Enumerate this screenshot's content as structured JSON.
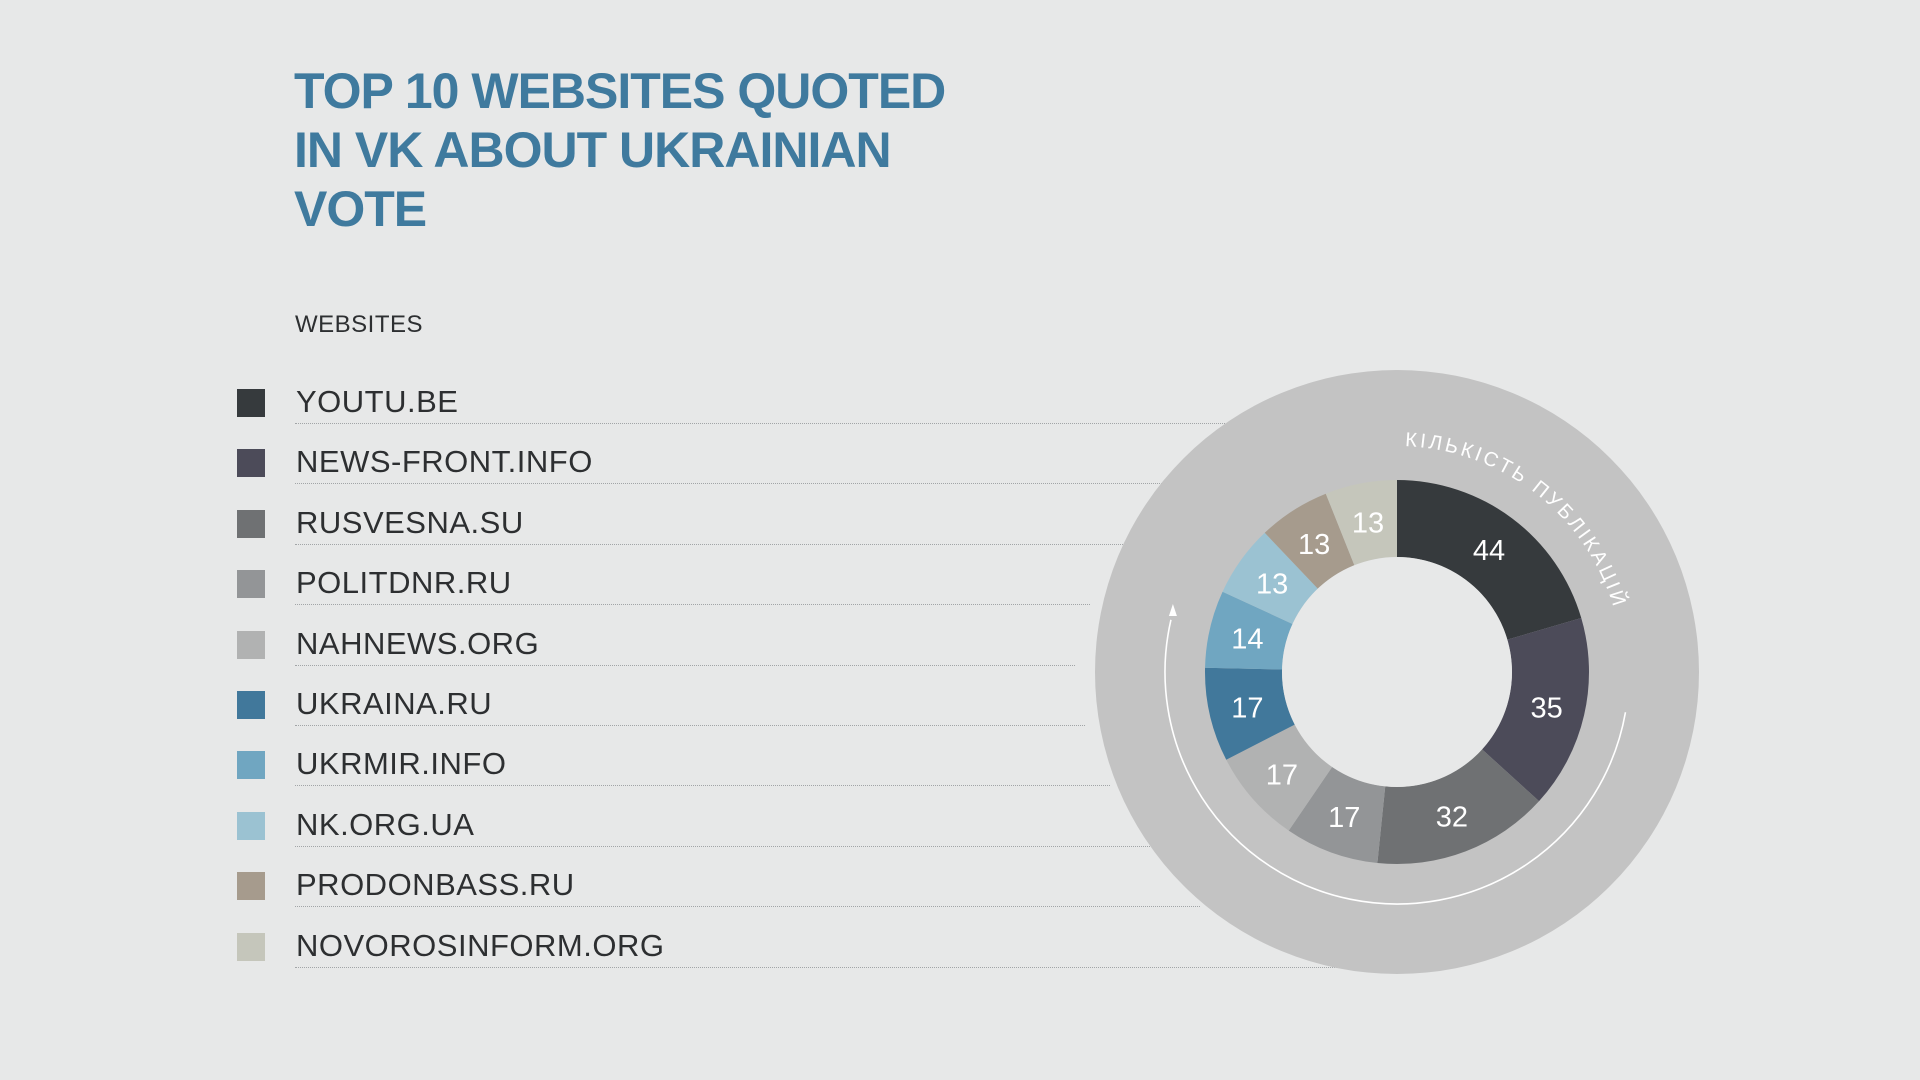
{
  "title_lines": [
    "TOP 10 WEBSITES QUOTED",
    "IN VK ABOUT UKRAINIAN",
    "VOTE"
  ],
  "legend_header": "WEBSITES",
  "ring_label": "КІЛЬКІСТЬ ПУБЛІКАЦІЙ",
  "colors": {
    "background": "#e7e8e8",
    "title": "#3f7a9e",
    "outer_ring": "#c3c3c3",
    "inner_hole": "#e7e8e8"
  },
  "chart_data": {
    "type": "pie",
    "title": "TOP 10 WEBSITES QUOTED IN VK ABOUT UKRAINIAN VOTE",
    "categories": [
      "YOUTU.BE",
      "NEWS-FRONT.INFO",
      "RUSVESNA.SU",
      "POLITDNR.RU",
      "NAHNEWS.ORG",
      "UKRAINA.RU",
      "UKRMIR.INFO",
      "NK.ORG.UA",
      "PRODONBASS.RU",
      "NOVOROSINFORM.ORG"
    ],
    "values": [
      44,
      35,
      32,
      17,
      17,
      17,
      14,
      13,
      13,
      13
    ],
    "colors": [
      "#363a3d",
      "#4c4b59",
      "#6f7173",
      "#939597",
      "#b1b2b2",
      "#41789b",
      "#70a6c1",
      "#9bc2d2",
      "#a69b8d",
      "#c5c6bb"
    ],
    "label_colors": [
      "#ffffff",
      "#ffffff",
      "#ffffff",
      "#ffffff",
      "#ffffff",
      "#ffffff",
      "#ffffff",
      "#ffffff",
      "#ffffff",
      "#ffffff"
    ],
    "legend": "left"
  }
}
